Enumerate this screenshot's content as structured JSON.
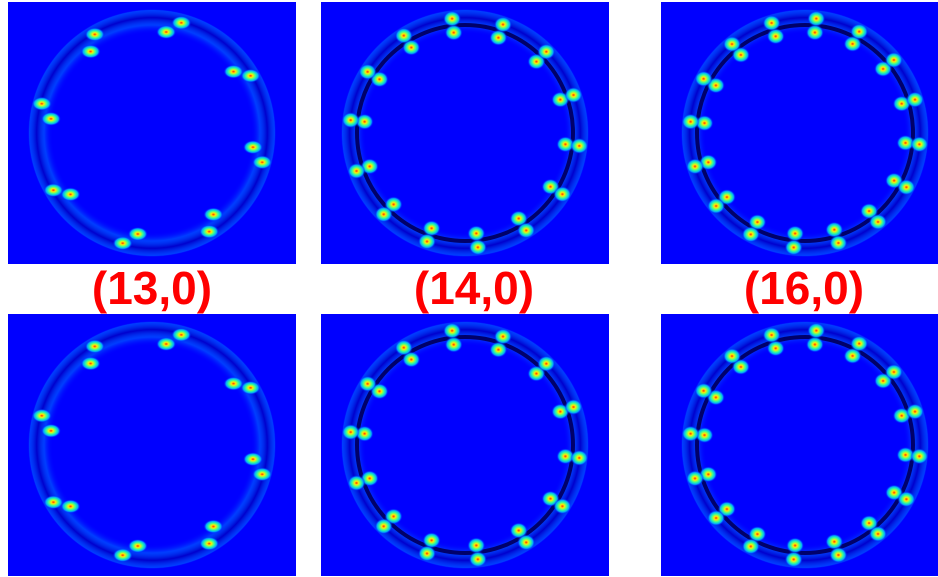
{
  "labels": [
    "(13,0)",
    "(14,0)",
    "(16,0)"
  ],
  "colors": {
    "background": "#0000ff",
    "label": "#ff0000"
  },
  "panels": [
    {
      "lobes": 16,
      "pattern": "distorted"
    },
    {
      "lobes": 28,
      "pattern": "regular"
    },
    {
      "lobes": 32,
      "pattern": "regular"
    },
    {
      "lobes": 16,
      "pattern": "distorted"
    },
    {
      "lobes": 28,
      "pattern": "regular"
    },
    {
      "lobes": 32,
      "pattern": "regular"
    }
  ]
}
